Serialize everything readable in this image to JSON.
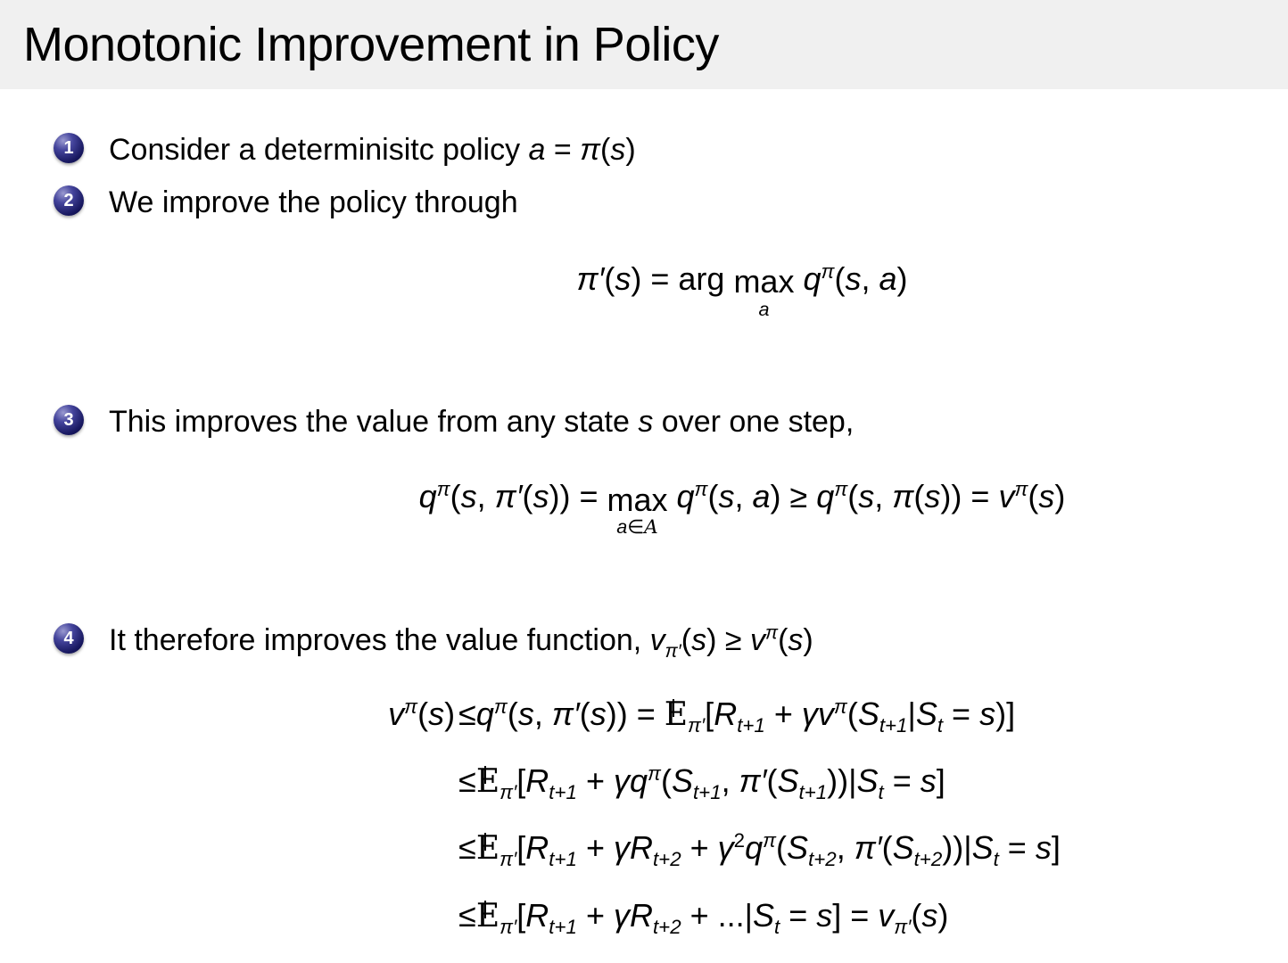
{
  "title": "Monotonic Improvement in Policy",
  "colors": {
    "header_bg": "#f0f0f0",
    "bullet_ball": "#17175e",
    "text": "#000000"
  },
  "bullets": [
    {
      "num": "1",
      "tokens": [
        {
          "t": "r",
          "s": "Consider a determinisitc policy "
        },
        {
          "t": "i",
          "s": "a"
        },
        {
          "t": "r",
          "s": " = "
        },
        {
          "t": "i",
          "s": "π"
        },
        {
          "t": "r",
          "s": "("
        },
        {
          "t": "i",
          "s": "s"
        },
        {
          "t": "r",
          "s": ")"
        }
      ]
    },
    {
      "num": "2",
      "tokens": [
        {
          "t": "r",
          "s": "We improve the policy through"
        }
      ]
    },
    {
      "num": "3",
      "tokens": [
        {
          "t": "r",
          "s": "This improves the value from any state "
        },
        {
          "t": "i",
          "s": "s"
        },
        {
          "t": "r",
          "s": " over one step,"
        }
      ]
    },
    {
      "num": "4",
      "tokens": [
        {
          "t": "r",
          "s": "It therefore improves the value function, "
        },
        {
          "t": "i",
          "s": "v"
        },
        {
          "t": "sub",
          "s": "π′"
        },
        {
          "t": "r",
          "s": "("
        },
        {
          "t": "i",
          "s": "s"
        },
        {
          "t": "r",
          "s": ") ≥ "
        },
        {
          "t": "i",
          "s": "v"
        },
        {
          "t": "sup",
          "s": "π"
        },
        {
          "t": "r",
          "s": "("
        },
        {
          "t": "i",
          "s": "s"
        },
        {
          "t": "r",
          "s": ")"
        }
      ]
    }
  ],
  "equations": {
    "policy_improvement": [
      {
        "t": "i",
        "s": "π′"
      },
      {
        "t": "r",
        "s": "("
      },
      {
        "t": "i",
        "s": "s"
      },
      {
        "t": "r",
        "s": ") = arg "
      },
      {
        "t": "under",
        "top": "max",
        "bot": [
          {
            "t": "i",
            "s": "a"
          }
        ]
      },
      {
        "t": "r",
        "s": " "
      },
      {
        "t": "i",
        "s": "q"
      },
      {
        "t": "sup",
        "s": "π"
      },
      {
        "t": "r",
        "s": "("
      },
      {
        "t": "i",
        "s": "s"
      },
      {
        "t": "r",
        "s": ", "
      },
      {
        "t": "i",
        "s": "a"
      },
      {
        "t": "r",
        "s": ")"
      }
    ],
    "one_step": [
      {
        "t": "i",
        "s": "q"
      },
      {
        "t": "sup",
        "s": "π"
      },
      {
        "t": "r",
        "s": "("
      },
      {
        "t": "i",
        "s": "s"
      },
      {
        "t": "r",
        "s": ", "
      },
      {
        "t": "i",
        "s": "π′"
      },
      {
        "t": "r",
        "s": "("
      },
      {
        "t": "i",
        "s": "s"
      },
      {
        "t": "r",
        "s": ")) = "
      },
      {
        "t": "under",
        "top": "max",
        "bot": [
          {
            "t": "i",
            "s": "a"
          },
          {
            "t": "r",
            "s": "∈"
          },
          {
            "t": "A"
          }
        ]
      },
      {
        "t": "r",
        "s": " "
      },
      {
        "t": "i",
        "s": "q"
      },
      {
        "t": "sup",
        "s": "π"
      },
      {
        "t": "r",
        "s": "("
      },
      {
        "t": "i",
        "s": "s"
      },
      {
        "t": "r",
        "s": ", "
      },
      {
        "t": "i",
        "s": "a"
      },
      {
        "t": "r",
        "s": ") ≥ "
      },
      {
        "t": "i",
        "s": "q"
      },
      {
        "t": "sup",
        "s": "π"
      },
      {
        "t": "r",
        "s": "("
      },
      {
        "t": "i",
        "s": "s"
      },
      {
        "t": "r",
        "s": ", "
      },
      {
        "t": "i",
        "s": "π"
      },
      {
        "t": "r",
        "s": "("
      },
      {
        "t": "i",
        "s": "s"
      },
      {
        "t": "r",
        "s": ")) = "
      },
      {
        "t": "i",
        "s": "v"
      },
      {
        "t": "sup",
        "s": "π"
      },
      {
        "t": "r",
        "s": "("
      },
      {
        "t": "i",
        "s": "s"
      },
      {
        "t": "r",
        "s": ")"
      }
    ],
    "derivation": {
      "lhs": [
        {
          "t": "i",
          "s": "v"
        },
        {
          "t": "sup",
          "s": "π"
        },
        {
          "t": "r",
          "s": "("
        },
        {
          "t": "i",
          "s": "s"
        },
        {
          "t": "r",
          "s": ") "
        }
      ],
      "lines": [
        [
          {
            "t": "r",
            "s": "≤"
          },
          {
            "t": "i",
            "s": "q"
          },
          {
            "t": "sup",
            "s": "π"
          },
          {
            "t": "r",
            "s": "("
          },
          {
            "t": "i",
            "s": "s"
          },
          {
            "t": "r",
            "s": ", "
          },
          {
            "t": "i",
            "s": "π′"
          },
          {
            "t": "r",
            "s": "("
          },
          {
            "t": "i",
            "s": "s"
          },
          {
            "t": "r",
            "s": ")) = "
          },
          {
            "t": "E"
          },
          {
            "t": "sub",
            "s": "π′"
          },
          {
            "t": "r",
            "s": "["
          },
          {
            "t": "i",
            "s": "R"
          },
          {
            "t": "sub",
            "s": "t+1"
          },
          {
            "t": "r",
            "s": " + "
          },
          {
            "t": "i",
            "s": "γv"
          },
          {
            "t": "sup",
            "s": "π"
          },
          {
            "t": "r",
            "s": "("
          },
          {
            "t": "i",
            "s": "S"
          },
          {
            "t": "sub",
            "s": "t+1"
          },
          {
            "t": "r",
            "s": "|"
          },
          {
            "t": "i",
            "s": "S"
          },
          {
            "t": "sub",
            "s": "t"
          },
          {
            "t": "r",
            "s": " = "
          },
          {
            "t": "i",
            "s": "s"
          },
          {
            "t": "r",
            "s": ")]"
          }
        ],
        [
          {
            "t": "r",
            "s": "≤"
          },
          {
            "t": "E"
          },
          {
            "t": "sub",
            "s": "π′"
          },
          {
            "t": "r",
            "s": "["
          },
          {
            "t": "i",
            "s": "R"
          },
          {
            "t": "sub",
            "s": "t+1"
          },
          {
            "t": "r",
            "s": " + "
          },
          {
            "t": "i",
            "s": "γq"
          },
          {
            "t": "sup",
            "s": "π"
          },
          {
            "t": "r",
            "s": "("
          },
          {
            "t": "i",
            "s": "S"
          },
          {
            "t": "sub",
            "s": "t+1"
          },
          {
            "t": "r",
            "s": ", "
          },
          {
            "t": "i",
            "s": "π′"
          },
          {
            "t": "r",
            "s": "("
          },
          {
            "t": "i",
            "s": "S"
          },
          {
            "t": "sub",
            "s": "t+1"
          },
          {
            "t": "r",
            "s": "))|"
          },
          {
            "t": "i",
            "s": "S"
          },
          {
            "t": "sub",
            "s": "t"
          },
          {
            "t": "r",
            "s": " = "
          },
          {
            "t": "i",
            "s": "s"
          },
          {
            "t": "r",
            "s": "]"
          }
        ],
        [
          {
            "t": "r",
            "s": "≤"
          },
          {
            "t": "E"
          },
          {
            "t": "sub",
            "s": "π′"
          },
          {
            "t": "r",
            "s": "["
          },
          {
            "t": "i",
            "s": "R"
          },
          {
            "t": "sub",
            "s": "t+1"
          },
          {
            "t": "r",
            "s": " + "
          },
          {
            "t": "i",
            "s": "γ"
          },
          {
            "t": "i",
            "s": "R"
          },
          {
            "t": "sub",
            "s": "t+2"
          },
          {
            "t": "r",
            "s": " + "
          },
          {
            "t": "i",
            "s": "γ"
          },
          {
            "t": "sup",
            "s": "2",
            "it": false
          },
          {
            "t": "i",
            "s": "q"
          },
          {
            "t": "sup",
            "s": "π"
          },
          {
            "t": "r",
            "s": "("
          },
          {
            "t": "i",
            "s": "S"
          },
          {
            "t": "sub",
            "s": "t+2"
          },
          {
            "t": "r",
            "s": ", "
          },
          {
            "t": "i",
            "s": "π′"
          },
          {
            "t": "r",
            "s": "("
          },
          {
            "t": "i",
            "s": "S"
          },
          {
            "t": "sub",
            "s": "t+2"
          },
          {
            "t": "r",
            "s": "))|"
          },
          {
            "t": "i",
            "s": "S"
          },
          {
            "t": "sub",
            "s": "t"
          },
          {
            "t": "r",
            "s": " = "
          },
          {
            "t": "i",
            "s": "s"
          },
          {
            "t": "r",
            "s": "]"
          }
        ],
        [
          {
            "t": "r",
            "s": "≤"
          },
          {
            "t": "E"
          },
          {
            "t": "sub",
            "s": "π′"
          },
          {
            "t": "r",
            "s": "["
          },
          {
            "t": "i",
            "s": "R"
          },
          {
            "t": "sub",
            "s": "t+1"
          },
          {
            "t": "r",
            "s": " + "
          },
          {
            "t": "i",
            "s": "γ"
          },
          {
            "t": "i",
            "s": "R"
          },
          {
            "t": "sub",
            "s": "t+2"
          },
          {
            "t": "r",
            "s": " + ...|"
          },
          {
            "t": "i",
            "s": "S"
          },
          {
            "t": "sub",
            "s": "t"
          },
          {
            "t": "r",
            "s": " = "
          },
          {
            "t": "i",
            "s": "s"
          },
          {
            "t": "r",
            "s": "] = "
          },
          {
            "t": "i",
            "s": "v"
          },
          {
            "t": "sub",
            "s": "π′"
          },
          {
            "t": "r",
            "s": "("
          },
          {
            "t": "i",
            "s": "s"
          },
          {
            "t": "r",
            "s": ")"
          }
        ]
      ]
    }
  }
}
